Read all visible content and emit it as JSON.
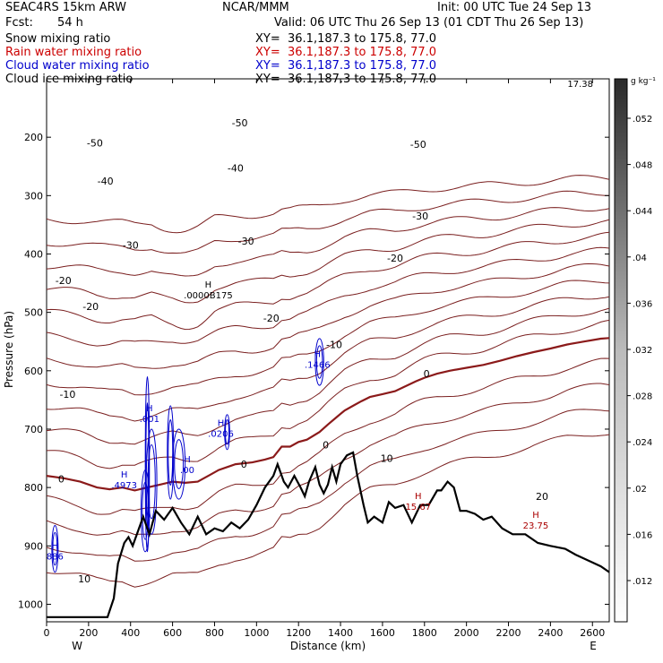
{
  "header": {
    "model": "SEAC4RS 15km ARW",
    "center": "NCAR/MMM",
    "init": "Init: 00 UTC Tue 24 Sep 13",
    "fcst_label": "Fcst:",
    "fcst_value": "54 h",
    "valid": "Valid: 06 UTC Thu 26 Sep 13 (01 CDT Thu 26 Sep 13)",
    "fields": [
      {
        "name": "Snow mixing ratio",
        "xy": "XY=  36.1,187.3 to 175.8, 77.0",
        "color": "#000000"
      },
      {
        "name": "Rain water mixing ratio",
        "xy": "XY=  36.1,187.3 to 175.8, 77.0",
        "color": "#cc0000"
      },
      {
        "name": "Cloud water mixing ratio",
        "xy": "XY=  36.1,187.3 to 175.8, 77.0",
        "color": "#0000cc"
      },
      {
        "name": "Cloud ice mixing ratio",
        "xy": "XY=  36.1,187.3 to 175.8, 77.0",
        "color": "#000000"
      }
    ]
  },
  "chart_data": {
    "type": "contour_cross_section",
    "xlabel": "Distance (km)",
    "ylabel": "Pressure (hPa)",
    "xlim": [
      0,
      2680
    ],
    "ylim": [
      1030,
      100
    ],
    "x_ticks": [
      "0",
      "200",
      "400",
      "600",
      "800",
      "1000",
      "1200",
      "1400",
      "1600",
      "1800",
      "2000",
      "2200",
      "2400",
      "2600"
    ],
    "y_ticks": [
      "200",
      "300",
      "400",
      "500",
      "600",
      "700",
      "800",
      "900",
      "1000"
    ],
    "x_end_labels": {
      "left": "W",
      "right": "E"
    },
    "colorbar": {
      "unit": "g kg⁻¹",
      "ticks": [
        ".012",
        ".016",
        ".02",
        ".024",
        ".028",
        ".032",
        ".036",
        ".04",
        ".044",
        ".048",
        ".052"
      ]
    },
    "temperature_contour_labels": [
      {
        "text": "-50",
        "x": 920,
        "p": 175
      },
      {
        "text": "-50",
        "x": 230,
        "p": 210
      },
      {
        "text": "-50",
        "x": 1770,
        "p": 212
      },
      {
        "text": "-40",
        "x": 900,
        "p": 253
      },
      {
        "text": "-40",
        "x": 280,
        "p": 275
      },
      {
        "text": "-30",
        "x": 1780,
        "p": 335
      },
      {
        "text": "-30",
        "x": 950,
        "p": 378
      },
      {
        "text": "-30",
        "x": 400,
        "p": 385
      },
      {
        "text": "-20",
        "x": 1660,
        "p": 407
      },
      {
        "text": "-20",
        "x": 80,
        "p": 445
      },
      {
        "text": "-20",
        "x": 210,
        "p": 490
      },
      {
        "text": "-20",
        "x": 1070,
        "p": 510
      },
      {
        "text": "-10",
        "x": 1370,
        "p": 555
      },
      {
        "text": "-10",
        "x": 100,
        "p": 640
      },
      {
        "text": "0",
        "x": 1810,
        "p": 605
      },
      {
        "text": "0",
        "x": 1330,
        "p": 727
      },
      {
        "text": "0",
        "x": 940,
        "p": 760
      },
      {
        "text": "0",
        "x": 70,
        "p": 785
      },
      {
        "text": "10",
        "x": 1620,
        "p": 750
      },
      {
        "text": "10",
        "x": 180,
        "p": 956
      },
      {
        "text": "20",
        "x": 2360,
        "p": 815
      }
    ],
    "maxima_labels": [
      {
        "text": ".0000B175",
        "x": 770,
        "p": 470,
        "color": "#000000"
      },
      {
        "text": ".1466",
        "x": 1290,
        "p": 589,
        "color": "#0000cc"
      },
      {
        "text": ".001",
        "x": 490,
        "p": 682,
        "color": "#0000cc"
      },
      {
        "text": ".0206",
        "x": 830,
        "p": 707,
        "color": "#0000cc"
      },
      {
        "text": ".4973",
        "x": 370,
        "p": 795,
        "color": "#0000cc"
      },
      {
        "text": ".00",
        "x": 670,
        "p": 769,
        "color": "#0000cc"
      },
      {
        "text": "886",
        "x": 40,
        "p": 917,
        "color": "#0000cc"
      },
      {
        "text": "15.67",
        "x": 1770,
        "p": 832,
        "color": "#aa0000"
      },
      {
        "text": "23.75",
        "x": 2330,
        "p": 864,
        "color": "#aa0000"
      }
    ],
    "top_label": "17.38",
    "terrain_profile": [
      [
        0,
        1022
      ],
      [
        150,
        1022
      ],
      [
        290,
        1022
      ],
      [
        320,
        990
      ],
      [
        340,
        930
      ],
      [
        370,
        895
      ],
      [
        390,
        885
      ],
      [
        410,
        900
      ],
      [
        430,
        880
      ],
      [
        460,
        850
      ],
      [
        490,
        880
      ],
      [
        520,
        840
      ],
      [
        560,
        855
      ],
      [
        600,
        835
      ],
      [
        640,
        860
      ],
      [
        680,
        880
      ],
      [
        720,
        850
      ],
      [
        760,
        880
      ],
      [
        800,
        870
      ],
      [
        840,
        875
      ],
      [
        880,
        860
      ],
      [
        920,
        870
      ],
      [
        960,
        855
      ],
      [
        1000,
        830
      ],
      [
        1040,
        800
      ],
      [
        1080,
        780
      ],
      [
        1100,
        760
      ],
      [
        1130,
        790
      ],
      [
        1150,
        800
      ],
      [
        1180,
        780
      ],
      [
        1210,
        800
      ],
      [
        1230,
        815
      ],
      [
        1250,
        790
      ],
      [
        1280,
        765
      ],
      [
        1300,
        795
      ],
      [
        1320,
        810
      ],
      [
        1340,
        795
      ],
      [
        1360,
        765
      ],
      [
        1380,
        790
      ],
      [
        1400,
        760
      ],
      [
        1430,
        745
      ],
      [
        1460,
        740
      ],
      [
        1480,
        780
      ],
      [
        1510,
        830
      ],
      [
        1530,
        860
      ],
      [
        1560,
        850
      ],
      [
        1600,
        860
      ],
      [
        1630,
        825
      ],
      [
        1660,
        835
      ],
      [
        1700,
        830
      ],
      [
        1740,
        860
      ],
      [
        1780,
        830
      ],
      [
        1820,
        830
      ],
      [
        1860,
        805
      ],
      [
        1880,
        805
      ],
      [
        1910,
        790
      ],
      [
        1940,
        800
      ],
      [
        1970,
        840
      ],
      [
        2000,
        840
      ],
      [
        2040,
        845
      ],
      [
        2080,
        855
      ],
      [
        2120,
        850
      ],
      [
        2170,
        870
      ],
      [
        2220,
        880
      ],
      [
        2280,
        880
      ],
      [
        2340,
        895
      ],
      [
        2400,
        900
      ],
      [
        2470,
        905
      ],
      [
        2520,
        915
      ],
      [
        2580,
        925
      ],
      [
        2640,
        935
      ],
      [
        2680,
        945
      ]
    ],
    "freezing_level": [
      [
        0,
        780
      ],
      [
        80,
        784
      ],
      [
        160,
        790
      ],
      [
        240,
        800
      ],
      [
        300,
        803
      ],
      [
        360,
        800
      ],
      [
        420,
        805
      ],
      [
        480,
        800
      ],
      [
        540,
        795
      ],
      [
        600,
        790
      ],
      [
        660,
        792
      ],
      [
        720,
        790
      ],
      [
        780,
        778
      ],
      [
        820,
        770
      ],
      [
        900,
        760
      ],
      [
        980,
        757
      ],
      [
        1040,
        752
      ],
      [
        1080,
        748
      ],
      [
        1120,
        730
      ],
      [
        1160,
        730
      ],
      [
        1200,
        722
      ],
      [
        1240,
        718
      ],
      [
        1300,
        705
      ],
      [
        1340,
        692
      ],
      [
        1380,
        680
      ],
      [
        1420,
        668
      ],
      [
        1460,
        660
      ],
      [
        1500,
        652
      ],
      [
        1540,
        645
      ],
      [
        1600,
        640
      ],
      [
        1660,
        635
      ],
      [
        1700,
        628
      ],
      [
        1760,
        618
      ],
      [
        1800,
        612
      ],
      [
        1860,
        605
      ],
      [
        1920,
        600
      ],
      [
        2000,
        595
      ],
      [
        2080,
        590
      ],
      [
        2160,
        583
      ],
      [
        2240,
        575
      ],
      [
        2320,
        568
      ],
      [
        2400,
        562
      ],
      [
        2480,
        555
      ],
      [
        2560,
        550
      ],
      [
        2640,
        545
      ],
      [
        2680,
        544
      ]
    ]
  }
}
